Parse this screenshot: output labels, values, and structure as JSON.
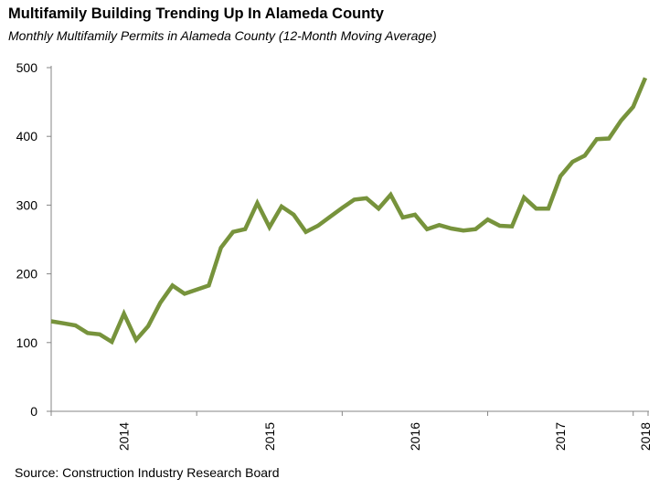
{
  "chart_data": {
    "type": "line",
    "title": "Multifamily Building Trending Up In Alameda County",
    "subtitle": "Monthly Multifamily Permits in Alameda County (12-Month Moving Average)",
    "xlabel": "",
    "ylabel": "",
    "ylim": [
      0,
      500
    ],
    "yticks": [
      "0",
      "100",
      "200",
      "300",
      "400",
      "500"
    ],
    "grid": false,
    "x_labels": [
      {
        "index": 6,
        "label": "2014"
      },
      {
        "index": 18,
        "label": "2015"
      },
      {
        "index": 30,
        "label": "2016"
      },
      {
        "index": 42,
        "label": "2017"
      },
      {
        "index": 49,
        "label": "2018"
      }
    ],
    "tick_every": 12,
    "series": [
      {
        "name": "Monthly Multifamily Permits (12-Month Moving Average)",
        "color": "#77933C",
        "values": [
          131,
          128,
          125,
          114,
          112,
          101,
          142,
          104,
          124,
          158,
          183,
          171,
          177,
          183,
          238,
          261,
          265,
          303,
          268,
          298,
          286,
          261,
          270,
          283,
          296,
          308,
          310,
          295,
          315,
          282,
          286,
          265,
          271,
          266,
          263,
          265,
          279,
          270,
          269,
          311,
          295,
          295,
          342,
          363,
          372,
          396,
          397,
          423,
          443,
          485
        ]
      }
    ]
  },
  "source": "Source: Construction Industry Research Board"
}
